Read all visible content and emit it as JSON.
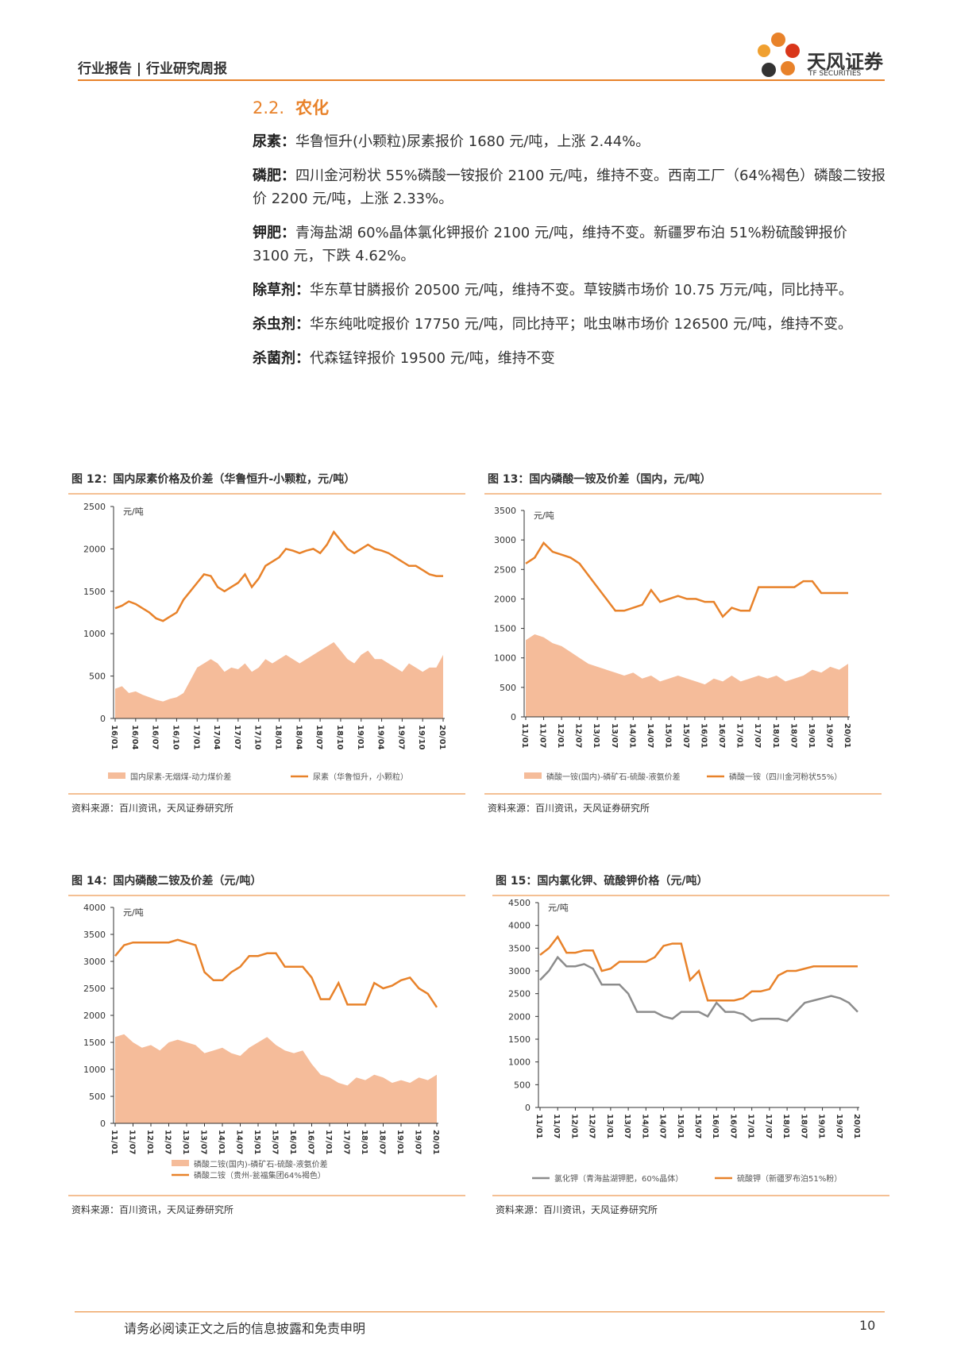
{
  "header": {
    "report_type": "行业报告",
    "report_name": "行业研究周报",
    "company": "天风证券",
    "company_en": "TF SECURITIES"
  },
  "section": {
    "number": "2.2.",
    "title": "农化"
  },
  "paragraphs": [
    {
      "label": "尿素：",
      "text": "华鲁恒升(小颗粒)尿素报价 1680 元/吨，上涨 2.44%。"
    },
    {
      "label": "磷肥：",
      "text": "四川金河粉状 55%磷酸一铵报价 2100 元/吨，维持不变。西南工厂（64%褐色）磷酸二铵报价 2200 元/吨，上涨 2.33%。"
    },
    {
      "label": "钾肥：",
      "text": "青海盐湖 60%晶体氯化钾报价 2100 元/吨，维持不变。新疆罗布泊 51%粉硫酸钾报价 3100 元，下跌 4.62%。"
    },
    {
      "label": "除草剂：",
      "text": "华东草甘膦报价 20500 元/吨，维持不变。草铵膦市场价 10.75 万元/吨，同比持平。"
    },
    {
      "label": "杀虫剂：",
      "text": "华东纯吡啶报价 17750 元/吨，同比持平；吡虫啉市场价 126500 元/吨，维持不变。"
    },
    {
      "label": "杀菌剂：",
      "text": "代森锰锌报价 19500 元/吨，维持不变"
    }
  ],
  "chart_data": [
    {
      "type": "line",
      "title": "图 12：国内尿素价格及价差（华鲁恒升-小颗粒，元/吨）",
      "unit_label": "元/吨",
      "source": "资料来源：百川资讯，天风证券研究所",
      "ylim": [
        0,
        2500
      ],
      "yticks": [
        0,
        500,
        1000,
        1500,
        2000,
        2500
      ],
      "legend_columns": 2,
      "categories": [
        "16/01",
        null,
        null,
        "16/04",
        null,
        null,
        "16/07",
        null,
        null,
        "16/10",
        null,
        null,
        "17/01",
        null,
        null,
        "17/04",
        null,
        null,
        "17/07",
        null,
        null,
        "17/10",
        null,
        null,
        "18/01",
        null,
        null,
        "18/04",
        null,
        null,
        "18/07",
        null,
        null,
        "18/10",
        null,
        null,
        "19/01",
        null,
        null,
        "19/04",
        null,
        null,
        "19/07",
        null,
        null,
        "19/10",
        null,
        null,
        "20/01"
      ],
      "series": [
        {
          "name": "国内尿素-无烟煤-动力煤价差",
          "style": "area",
          "color": "#f5bc9a",
          "values": [
            350,
            380,
            300,
            320,
            280,
            250,
            220,
            200,
            230,
            250,
            300,
            450,
            600,
            650,
            700,
            650,
            550,
            600,
            580,
            650,
            550,
            600,
            700,
            650,
            700,
            750,
            700,
            650,
            700,
            750,
            800,
            850,
            900,
            800,
            700,
            650,
            750,
            800,
            700,
            700,
            650,
            600,
            550,
            650,
            600,
            550,
            600,
            600,
            750
          ]
        },
        {
          "name": "尿素（华鲁恒升，小颗粒）",
          "style": "line",
          "color": "#e8822a",
          "values": [
            1300,
            1330,
            1380,
            1350,
            1300,
            1250,
            1180,
            1150,
            1200,
            1250,
            1400,
            1500,
            1600,
            1700,
            1680,
            1550,
            1500,
            1550,
            1600,
            1700,
            1550,
            1650,
            1800,
            1850,
            1900,
            2000,
            1980,
            1950,
            1980,
            2000,
            1950,
            2050,
            2200,
            2100,
            2000,
            1950,
            2000,
            2050,
            2000,
            1980,
            1950,
            1900,
            1850,
            1800,
            1800,
            1750,
            1700,
            1680,
            1680
          ]
        }
      ]
    },
    {
      "type": "line",
      "title": "图 13：国内磷酸一铵及价差（国内，元/吨）",
      "unit_label": "元/吨",
      "source": "资料来源：百川资讯，天风证券研究所",
      "ylim": [
        0,
        3500
      ],
      "yticks": [
        0,
        500,
        1000,
        1500,
        2000,
        2500,
        3000,
        3500
      ],
      "legend_columns": 2,
      "categories": [
        "11/01",
        null,
        "11/07",
        null,
        "12/01",
        null,
        "12/07",
        null,
        "13/01",
        null,
        "13/07",
        null,
        "14/01",
        null,
        "14/07",
        null,
        "15/01",
        null,
        "15/07",
        null,
        "16/01",
        null,
        "16/07",
        null,
        "17/01",
        null,
        "17/07",
        null,
        "18/01",
        null,
        "18/07",
        null,
        "19/01",
        null,
        "19/07",
        null,
        "20/01"
      ],
      "series": [
        {
          "name": "磷酸一铵(国内)-磷矿石-硫酸-液氨价差",
          "style": "area",
          "color": "#f5bc9a",
          "values": [
            1300,
            1400,
            1350,
            1250,
            1200,
            1100,
            1000,
            900,
            850,
            800,
            750,
            700,
            750,
            650,
            700,
            600,
            650,
            700,
            650,
            600,
            550,
            650,
            600,
            700,
            600,
            650,
            700,
            650,
            700,
            600,
            650,
            700,
            800,
            750,
            850,
            800,
            900
          ]
        },
        {
          "name": "磷酸一铵（四川金河粉状55%）",
          "style": "line",
          "color": "#e8822a",
          "values": [
            2600,
            2700,
            2950,
            2800,
            2750,
            2700,
            2600,
            2400,
            2200,
            2000,
            1800,
            1800,
            1850,
            1900,
            2150,
            1950,
            2000,
            2050,
            2000,
            2000,
            1950,
            1950,
            1700,
            1850,
            1800,
            1800,
            2200,
            2200,
            2200,
            2200,
            2200,
            2300,
            2300,
            2100,
            2100,
            2100,
            2100
          ]
        }
      ]
    },
    {
      "type": "line",
      "title": "图 14：国内磷酸二铵及价差（元/吨）",
      "unit_label": "元/吨",
      "source": "资料来源：百川资讯，天风证券研究所",
      "ylim": [
        0,
        4000
      ],
      "yticks": [
        0,
        500,
        1000,
        1500,
        2000,
        2500,
        3000,
        3500,
        4000
      ],
      "legend_columns": 1,
      "categories": [
        "11/01",
        null,
        "11/07",
        null,
        "12/01",
        null,
        "12/07",
        null,
        "13/01",
        null,
        "13/07",
        null,
        "14/01",
        null,
        "14/07",
        null,
        "15/01",
        null,
        "15/07",
        null,
        "16/01",
        null,
        "16/07",
        null,
        "17/01",
        null,
        "17/07",
        null,
        "18/01",
        null,
        "18/07",
        null,
        "19/01",
        null,
        "19/07",
        null,
        "20/01"
      ],
      "series": [
        {
          "name": "磷酸二铵(国内)-磷矿石-硫酸-液氨价差",
          "style": "area",
          "color": "#f5bc9a",
          "values": [
            1600,
            1650,
            1500,
            1400,
            1450,
            1350,
            1500,
            1550,
            1500,
            1450,
            1300,
            1350,
            1400,
            1300,
            1250,
            1400,
            1500,
            1600,
            1450,
            1350,
            1300,
            1350,
            1100,
            900,
            850,
            750,
            700,
            850,
            800,
            900,
            850,
            750,
            800,
            750,
            850,
            800,
            900
          ]
        },
        {
          "name": "磷酸二铵（贵州-瓮福集团64%褐色）",
          "style": "line",
          "color": "#e8822a",
          "values": [
            3100,
            3300,
            3350,
            3350,
            3350,
            3350,
            3350,
            3400,
            3350,
            3300,
            2800,
            2650,
            2650,
            2800,
            2900,
            3100,
            3100,
            3150,
            3150,
            2900,
            2900,
            2900,
            2700,
            2300,
            2300,
            2600,
            2200,
            2200,
            2200,
            2600,
            2500,
            2550,
            2650,
            2700,
            2500,
            2400,
            2150
          ]
        }
      ]
    },
    {
      "type": "line",
      "title": "图 15：国内氯化钾、硫酸钾价格（元/吨）",
      "unit_label": "元/吨",
      "source": "资料来源：百川资讯，天风证券研究所",
      "ylim": [
        0,
        4500
      ],
      "yticks": [
        0,
        500,
        1000,
        1500,
        2000,
        2500,
        3000,
        3500,
        4000,
        4500
      ],
      "legend_columns": 2,
      "categories": [
        "11/01",
        null,
        "11/07",
        null,
        "12/01",
        null,
        "12/07",
        null,
        "13/01",
        null,
        "13/07",
        null,
        "14/01",
        null,
        "14/07",
        null,
        "15/01",
        null,
        "15/07",
        null,
        "16/01",
        null,
        "16/07",
        null,
        "17/01",
        null,
        "17/07",
        null,
        "18/01",
        null,
        "18/07",
        null,
        "19/01",
        null,
        "19/07",
        null,
        "20/01"
      ],
      "series": [
        {
          "name": "氯化钾（青海盐湖钾肥，60%晶体）",
          "style": "line",
          "color": "#8c8c8c",
          "values": [
            2800,
            3000,
            3300,
            3100,
            3100,
            3150,
            3050,
            2700,
            2700,
            2700,
            2500,
            2100,
            2100,
            2100,
            2000,
            1950,
            2100,
            2100,
            2100,
            2000,
            2300,
            2100,
            2100,
            2050,
            1900,
            1950,
            1950,
            1950,
            1900,
            2100,
            2300,
            2350,
            2400,
            2450,
            2400,
            2300,
            2100
          ]
        },
        {
          "name": "硫酸钾（新疆罗布泊51%粉）",
          "style": "line",
          "color": "#e8822a",
          "values": [
            3350,
            3500,
            3750,
            3400,
            3400,
            3450,
            3450,
            3000,
            3050,
            3200,
            3200,
            3200,
            3200,
            3300,
            3550,
            3600,
            3600,
            2800,
            3000,
            2350,
            2350,
            2350,
            2350,
            2400,
            2550,
            2550,
            2600,
            2900,
            3000,
            3000,
            3050,
            3100,
            3100,
            3100,
            3100,
            3100,
            3100
          ]
        }
      ]
    }
  ],
  "footer": {
    "disclaimer": "请务必阅读正文之后的信息披露和免责申明",
    "page": "10"
  }
}
